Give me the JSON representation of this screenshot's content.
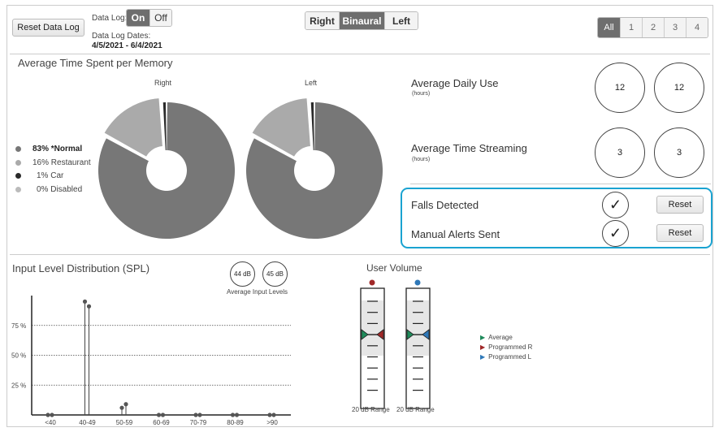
{
  "toolbar": {
    "reset_data_log": "Reset Data Log",
    "data_log_label": "Data Log:",
    "data_log_options": [
      "On",
      "Off"
    ],
    "data_log_selected": "On",
    "data_log_dates_label": "Data Log Dates:",
    "data_log_dates": "4/5/2021 - 6/4/2021",
    "ear_options": [
      "Right",
      "Binaural",
      "Left"
    ],
    "ear_selected": "Binaural",
    "memory_options": [
      "All",
      "1",
      "2",
      "3",
      "4"
    ],
    "memory_selected": "All"
  },
  "memory_section": {
    "title": "Average Time Spent per Memory",
    "legend": [
      {
        "label": "83% *Normal",
        "color": "#777777"
      },
      {
        "label": "16% Restaurant",
        "color": "#aaaaaa"
      },
      {
        "label": "1% Car",
        "color": "#2a2a2a"
      },
      {
        "label": "0% Disabled",
        "color": "#bbbbbb"
      }
    ]
  },
  "stats": {
    "daily_use": {
      "title": "Average Daily Use",
      "unit": "(hours)",
      "right": "12",
      "left": "12"
    },
    "streaming": {
      "title": "Average Time Streaming",
      "unit": "(hours)",
      "right": "3",
      "left": "3"
    },
    "falls": {
      "label": "Falls Detected",
      "reset": "Reset"
    },
    "alerts": {
      "label": "Manual Alerts Sent",
      "reset": "Reset"
    },
    "highlight_color": "#1aa3d1"
  },
  "input_section": {
    "title": "Input Level Distribution (SPL)",
    "avg_right": "44 dB",
    "avg_left": "45 dB",
    "avg_label": "Average Input Levels"
  },
  "volume": {
    "title": "User Volume",
    "range_right": "20 dB Range",
    "range_left": "20 dB Range",
    "legend": [
      {
        "label": "Average",
        "color": "#1e8a5a"
      },
      {
        "label": "Programmed R",
        "color": "#a02828"
      },
      {
        "label": "Programmed L",
        "color": "#2f78b8"
      }
    ]
  },
  "chart_data": [
    {
      "type": "pie",
      "title": "Right",
      "categories": [
        "*Normal",
        "Restaurant",
        "Car",
        "Disabled"
      ],
      "values": [
        83,
        16,
        1,
        0
      ],
      "colors": [
        "#777777",
        "#aaaaaa",
        "#2a2a2a",
        "#bbbbbb"
      ]
    },
    {
      "type": "pie",
      "title": "Left",
      "categories": [
        "*Normal",
        "Restaurant",
        "Car",
        "Disabled"
      ],
      "values": [
        83,
        16,
        1,
        0
      ],
      "colors": [
        "#777777",
        "#aaaaaa",
        "#2a2a2a",
        "#bbbbbb"
      ]
    },
    {
      "type": "bar",
      "title": "Input Level Distribution (SPL)",
      "categories": [
        "<40",
        "40-49",
        "50-59",
        "60-69",
        "70-79",
        "80-89",
        ">90"
      ],
      "series": [
        {
          "values": [
            0,
            95,
            6,
            0,
            0,
            0,
            0
          ]
        },
        {
          "values": [
            0,
            91,
            9,
            0,
            0,
            0,
            0
          ]
        }
      ],
      "yticks": [
        "25 %",
        "50 %",
        "75 %"
      ],
      "ylim": [
        0,
        100
      ],
      "grid": true
    }
  ]
}
